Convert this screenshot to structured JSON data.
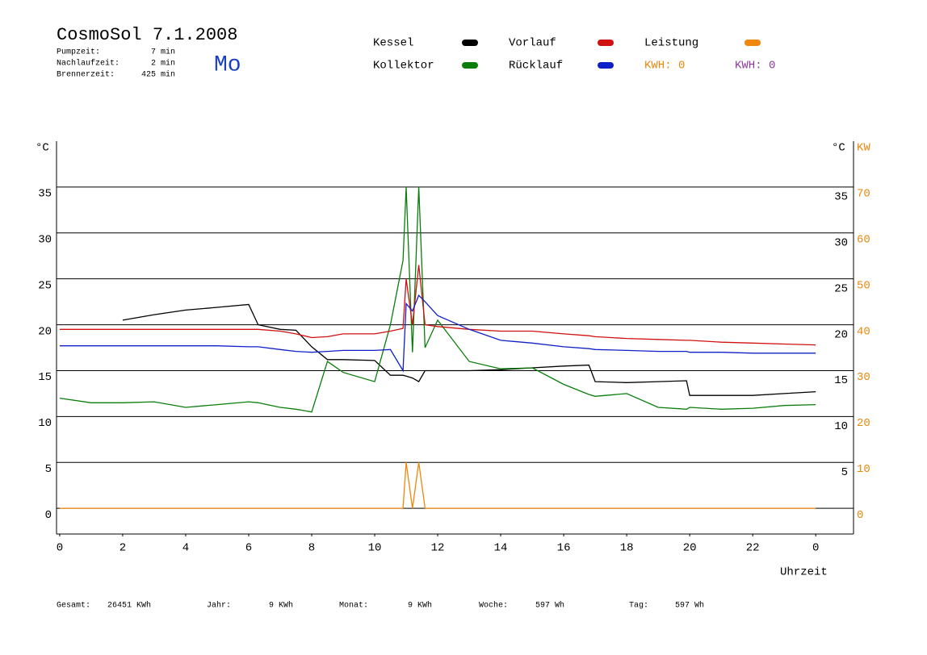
{
  "header": {
    "title": "CosmoSol 7.1.2008",
    "info": [
      {
        "label": "Pumpzeit:",
        "value": "7 min"
      },
      {
        "label": "Nachlaufzeit:",
        "value": "2 min"
      },
      {
        "label": "Brennerzeit:",
        "value": "425 min"
      }
    ],
    "day": "Mo",
    "kwh_labels": [
      {
        "text": "KWH: 0",
        "color": "#e8870e"
      },
      {
        "text": "KWH: 0",
        "color": "#8e3a9c"
      }
    ]
  },
  "chart_data": {
    "type": "line",
    "ylabel": "°C",
    "ylabel_right": "°C",
    "y2label": "KW",
    "xlabel": "Uhrzeit",
    "x": [
      0,
      1,
      2,
      3,
      4,
      5,
      6,
      6.3,
      7,
      7.5,
      8,
      8.5,
      9,
      10,
      10.5,
      10.9,
      11,
      11.2,
      11.4,
      11.6,
      12,
      13,
      14,
      15,
      16,
      16.8,
      17,
      18,
      19,
      19.9,
      20,
      21,
      22,
      23,
      24
    ],
    "xlim": [
      -0.1,
      25.2
    ],
    "xticks": [
      0,
      2,
      4,
      6,
      8,
      10,
      12,
      14,
      16,
      18,
      20,
      22,
      {
        "value": 24,
        "label": "0"
      }
    ],
    "ylim": [
      -2.8,
      40
    ],
    "yticks": [
      0,
      5,
      10,
      15,
      20,
      25,
      30,
      35
    ],
    "yticks_right": [
      5,
      10,
      15,
      20,
      25,
      30,
      35
    ],
    "y2lim": [
      -5.6,
      80
    ],
    "y2ticks": [
      0,
      10,
      20,
      30,
      40,
      50,
      60,
      70
    ],
    "grid": true,
    "series": [
      {
        "name": "Kessel",
        "color": "#000000",
        "values": [
          null,
          null,
          20.5,
          21.1,
          21.6,
          21.9,
          22.2,
          20,
          19.5,
          19.4,
          17.6,
          16.2,
          16.2,
          16.1,
          14.5,
          14.5,
          14.4,
          14.2,
          13.8,
          15,
          15,
          15,
          15.1,
          15.3,
          15.5,
          15.6,
          13.8,
          13.7,
          13.8,
          13.9,
          12.3,
          12.3,
          12.3,
          12.5,
          12.7
        ]
      },
      {
        "name": "Kollektor",
        "color": "#0a7d0a",
        "values": [
          12,
          11.5,
          11.5,
          11.6,
          11,
          11.3,
          11.6,
          11.5,
          11,
          10.8,
          10.5,
          16,
          14.8,
          13.8,
          20,
          27,
          35,
          17,
          35,
          17.5,
          20.5,
          16,
          15.2,
          15.3,
          13.5,
          12.4,
          12.2,
          12.5,
          11,
          10.8,
          11,
          10.8,
          10.9,
          11.2,
          11.3
        ]
      },
      {
        "name": "Vorlauf",
        "color": "#d01010",
        "values": [
          19.5,
          19.5,
          19.5,
          19.5,
          19.5,
          19.5,
          19.5,
          19.5,
          19.3,
          19,
          18.6,
          18.7,
          19,
          19,
          19.3,
          19.6,
          25,
          20,
          26.5,
          20,
          19.8,
          19.5,
          19.3,
          19.3,
          19,
          18.8,
          18.7,
          18.5,
          18.4,
          18.3,
          18.3,
          18.1,
          18,
          17.9,
          17.8
        ]
      },
      {
        "name": "Rücklauf",
        "color": "#1020c8",
        "values": [
          17.7,
          17.7,
          17.7,
          17.7,
          17.7,
          17.7,
          17.6,
          17.6,
          17.3,
          17.1,
          17,
          17.1,
          17.2,
          17.2,
          17.3,
          15,
          22.3,
          21.5,
          23.2,
          22.5,
          21,
          19.5,
          18.3,
          18,
          17.6,
          17.4,
          17.3,
          17.2,
          17.1,
          17.1,
          17,
          17,
          16.9,
          16.9,
          16.9
        ]
      },
      {
        "name": "Leistung",
        "color": "#f0860a",
        "axis": "y2",
        "values": [
          0,
          0,
          0,
          0,
          0,
          0,
          0,
          0,
          0,
          0,
          0,
          0,
          0,
          0,
          0,
          0,
          10,
          0,
          10,
          0,
          0,
          0,
          0,
          0,
          0,
          0,
          0,
          0,
          0,
          0,
          0,
          0,
          0,
          0,
          0
        ]
      }
    ]
  },
  "footer": [
    {
      "label": "Gesamt:",
      "value": "26451 KWh"
    },
    {
      "label": "Jahr:",
      "value": "9 KWh"
    },
    {
      "label": "Monat:",
      "value": "9 KWh"
    },
    {
      "label": "Woche:",
      "value": "597 Wh"
    },
    {
      "label": "Tag:",
      "value": "597 Wh"
    }
  ]
}
